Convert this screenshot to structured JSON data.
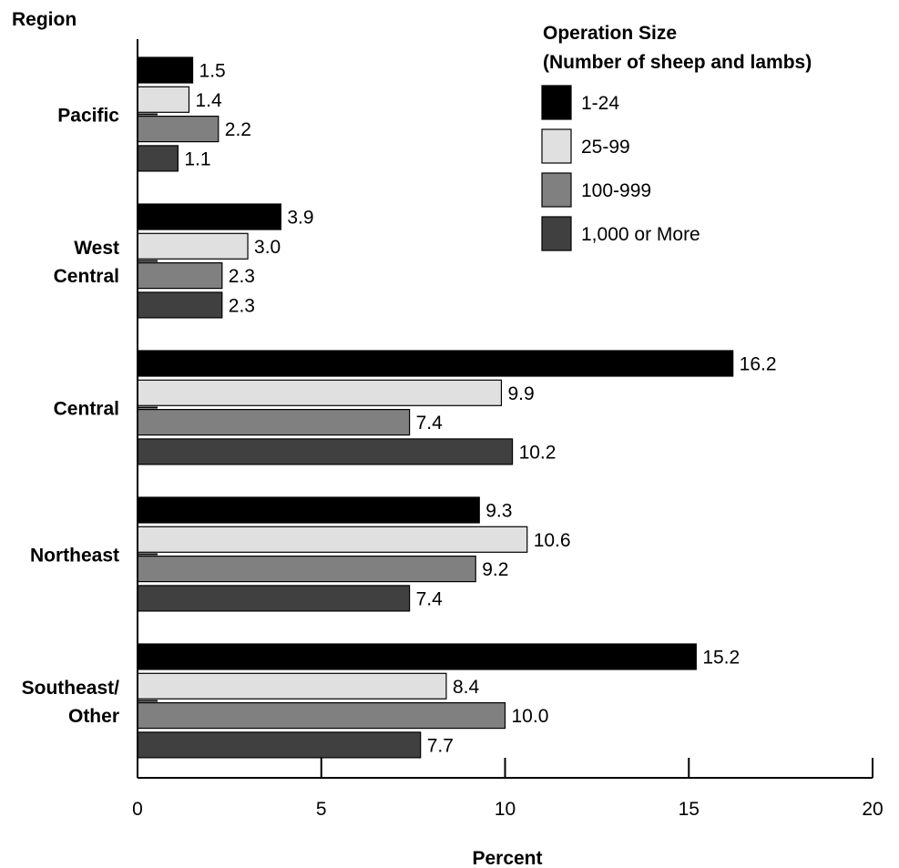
{
  "chart_data": {
    "type": "bar",
    "orientation": "horizontal",
    "y_axis_title": "Region",
    "xlabel": "Percent",
    "xlim": [
      0,
      20
    ],
    "x_ticks": [
      0,
      5,
      10,
      15,
      20
    ],
    "grid": false,
    "categories": [
      [
        "Pacific"
      ],
      [
        "West",
        "Central"
      ],
      [
        "Central"
      ],
      [
        "Northeast"
      ],
      [
        "Southeast/",
        "Other"
      ]
    ],
    "legend": {
      "title_line1": "Operation Size",
      "title_line2": "(Number of sheep and lambs)",
      "placement": "top-right"
    },
    "series": [
      {
        "name": "1-24",
        "color": "#000000",
        "values": [
          1.5,
          3.9,
          16.2,
          9.3,
          15.2
        ],
        "labels": [
          "1.5",
          "3.9",
          "16.2",
          "9.3",
          "15.2"
        ]
      },
      {
        "name": "25-99",
        "color": "#e0e0e0",
        "values": [
          1.4,
          3.0,
          9.9,
          10.6,
          8.4
        ],
        "labels": [
          "1.4",
          "3.0",
          "9.9",
          "10.6",
          "8.4"
        ]
      },
      {
        "name": "100-999",
        "color": "#808080",
        "values": [
          2.2,
          2.3,
          7.4,
          9.2,
          10.0
        ],
        "labels": [
          "2.2",
          "2.3",
          "7.4",
          "9.2",
          "10.0"
        ]
      },
      {
        "name": "1,000 or More",
        "color": "#404040",
        "values": [
          1.1,
          2.3,
          10.2,
          7.4,
          7.7
        ],
        "labels": [
          "1.1",
          "2.3",
          "10.2",
          "7.4",
          "7.7"
        ]
      }
    ]
  }
}
